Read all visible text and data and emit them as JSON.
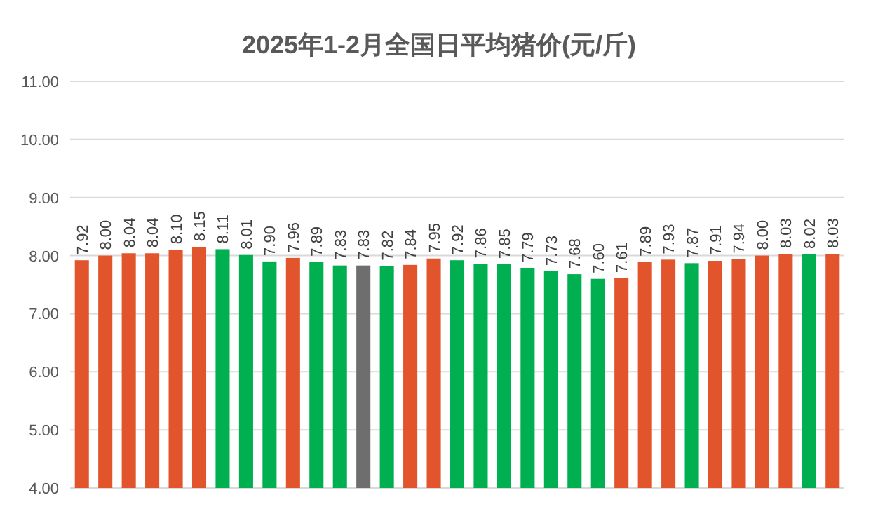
{
  "chart_data": {
    "type": "bar",
    "title": "2025年1-2月全国日平均猪价(元/斤)",
    "categories": [
      null,
      null,
      null,
      null,
      null,
      null,
      null,
      null,
      null,
      null,
      null,
      null,
      null,
      null,
      null,
      null,
      null,
      null,
      null,
      null,
      null,
      null,
      null,
      null,
      null,
      null,
      null,
      null,
      null,
      null,
      null,
      null,
      null
    ],
    "values": [
      7.92,
      8.0,
      8.04,
      8.04,
      8.1,
      8.15,
      8.11,
      8.01,
      7.9,
      7.96,
      7.89,
      7.83,
      7.83,
      7.82,
      7.84,
      7.95,
      7.92,
      7.86,
      7.85,
      7.79,
      7.73,
      7.68,
      7.6,
      7.61,
      7.89,
      7.93,
      7.87,
      7.91,
      7.94,
      8.0,
      8.03,
      8.02,
      8.03
    ],
    "colors": [
      "#e2542b",
      "#e2542b",
      "#e2542b",
      "#e2542b",
      "#e2542b",
      "#e2542b",
      "#00b050",
      "#00b050",
      "#00b050",
      "#e2542b",
      "#00b050",
      "#00b050",
      "#6e6e6e",
      "#00b050",
      "#e2542b",
      "#e2542b",
      "#00b050",
      "#00b050",
      "#00b050",
      "#00b050",
      "#00b050",
      "#00b050",
      "#00b050",
      "#e2542b",
      "#e2542b",
      "#e2542b",
      "#00b050",
      "#e2542b",
      "#e2542b",
      "#e2542b",
      "#e2542b",
      "#00b050",
      "#e2542b"
    ],
    "ylim": [
      4,
      11
    ],
    "yticks": [
      {
        "value": 4,
        "label": "4.00"
      },
      {
        "value": 5,
        "label": "5.00"
      },
      {
        "value": 6,
        "label": "6.00"
      },
      {
        "value": 7,
        "label": "7.00"
      },
      {
        "value": 8,
        "label": "8.00"
      },
      {
        "value": 9,
        "label": "9.00"
      },
      {
        "value": 10,
        "label": "10.00"
      },
      {
        "value": 11,
        "label": "11.00"
      }
    ],
    "value_labels": [
      "7.92",
      "8.00",
      "8.04",
      "8.04",
      "8.10",
      "8.15",
      "8.11",
      "8.01",
      "7.90",
      "7.96",
      "7.89",
      "7.83",
      "7.83",
      "7.82",
      "7.84",
      "7.95",
      "7.92",
      "7.86",
      "7.85",
      "7.79",
      "7.73",
      "7.68",
      "7.60",
      "7.61",
      "7.89",
      "7.93",
      "7.87",
      "7.91",
      "7.94",
      "8.00",
      "8.03",
      "8.02",
      "8.03"
    ],
    "grid": "y"
  }
}
